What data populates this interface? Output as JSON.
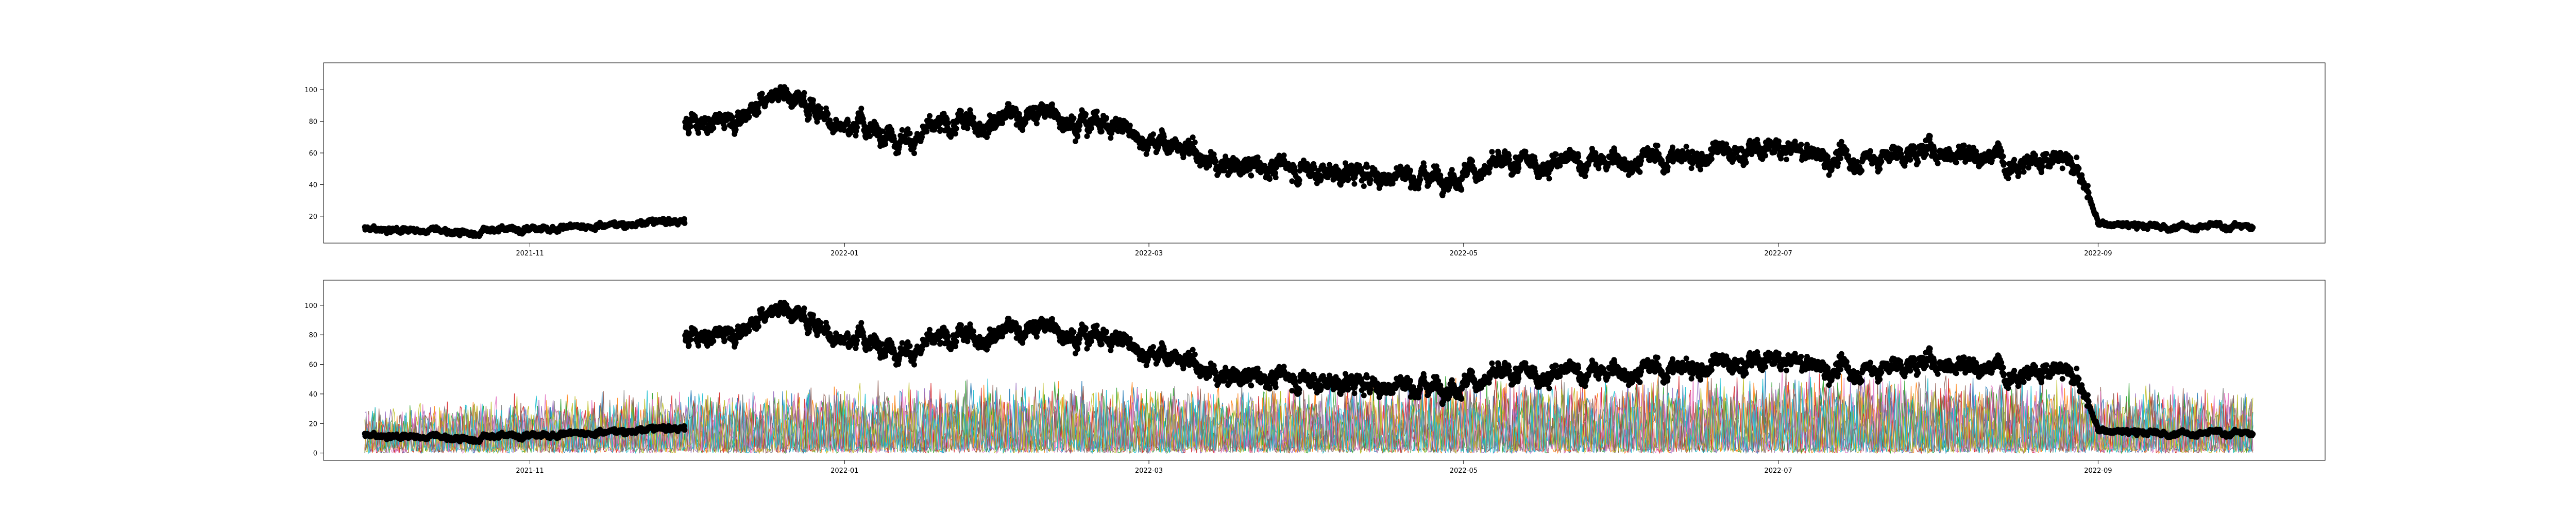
{
  "chart_data": [
    {
      "type": "scatter",
      "title": "",
      "xlabel": "",
      "ylabel": "",
      "x_range": [
        "2021-09-22",
        "2022-10-15"
      ],
      "ylim": [
        3,
        117
      ],
      "x_ticks": [
        "2021-11",
        "2022-01",
        "2022-03",
        "2022-05",
        "2022-07",
        "2022-09"
      ],
      "y_ticks": [
        20,
        40,
        60,
        80,
        100
      ],
      "grid": false,
      "legend": "none",
      "marker_color": "#000000",
      "series": [
        {
          "values": [
            [
              "2021-09-30",
              12
            ],
            [
              "2021-10-10",
              11
            ],
            [
              "2021-10-20",
              10
            ],
            [
              "2021-10-31",
              12
            ],
            [
              "2021-11-10",
              14
            ],
            [
              "2021-11-20",
              15
            ],
            [
              "2021-11-30",
              17
            ],
            [
              "2021-12-01",
              78
            ],
            [
              "2021-12-10",
              82
            ],
            [
              "2021-12-20",
              100
            ],
            [
              "2022-01-01",
              78
            ],
            [
              "2022-01-15",
              70
            ],
            [
              "2022-02-01",
              85
            ],
            [
              "2022-02-15",
              83
            ],
            [
              "2022-02-25",
              75
            ],
            [
              "2022-03-05",
              65
            ],
            [
              "2022-03-15",
              52
            ],
            [
              "2022-04-01",
              50
            ],
            [
              "2022-04-15",
              45
            ],
            [
              "2022-05-01",
              48
            ],
            [
              "2022-05-15",
              53
            ],
            [
              "2022-06-01",
              55
            ],
            [
              "2022-06-15",
              58
            ],
            [
              "2022-07-01",
              62
            ],
            [
              "2022-07-15",
              55
            ],
            [
              "2022-08-01",
              62
            ],
            [
              "2022-08-15",
              58
            ],
            [
              "2022-08-28",
              52
            ],
            [
              "2022-09-01",
              15
            ],
            [
              "2022-09-15",
              13
            ],
            [
              "2022-10-01",
              14
            ]
          ]
        }
      ]
    },
    {
      "type": "line",
      "title": "",
      "xlabel": "",
      "ylabel": "",
      "x_range": [
        "2021-09-22",
        "2022-10-15"
      ],
      "ylim": [
        -5,
        117
      ],
      "x_ticks": [
        "2021-11",
        "2022-01",
        "2022-03",
        "2022-05",
        "2022-07",
        "2022-09"
      ],
      "y_ticks": [
        0,
        20,
        40,
        60,
        80,
        100
      ],
      "grid": false,
      "legend": "none",
      "line_palette": [
        "#1f77b4",
        "#ff7f0e",
        "#2ca02c",
        "#d62728",
        "#9467bd",
        "#8c564b",
        "#e377c2",
        "#7f7f7f",
        "#bcbd22",
        "#17becf"
      ],
      "band_envelope": [
        [
          "2021-09-30",
          35
        ],
        [
          "2021-11-01",
          42
        ],
        [
          "2021-12-01",
          45
        ],
        [
          "2022-01-01",
          50
        ],
        [
          "2022-02-01",
          52
        ],
        [
          "2022-03-01",
          50
        ],
        [
          "2022-04-01",
          50
        ],
        [
          "2022-05-01",
          55
        ],
        [
          "2022-06-01",
          55
        ],
        [
          "2022-07-01",
          58
        ],
        [
          "2022-08-01",
          58
        ],
        [
          "2022-09-01",
          50
        ],
        [
          "2022-10-01",
          45
        ]
      ],
      "scatter_overlay": "same as the upper panel"
    }
  ]
}
